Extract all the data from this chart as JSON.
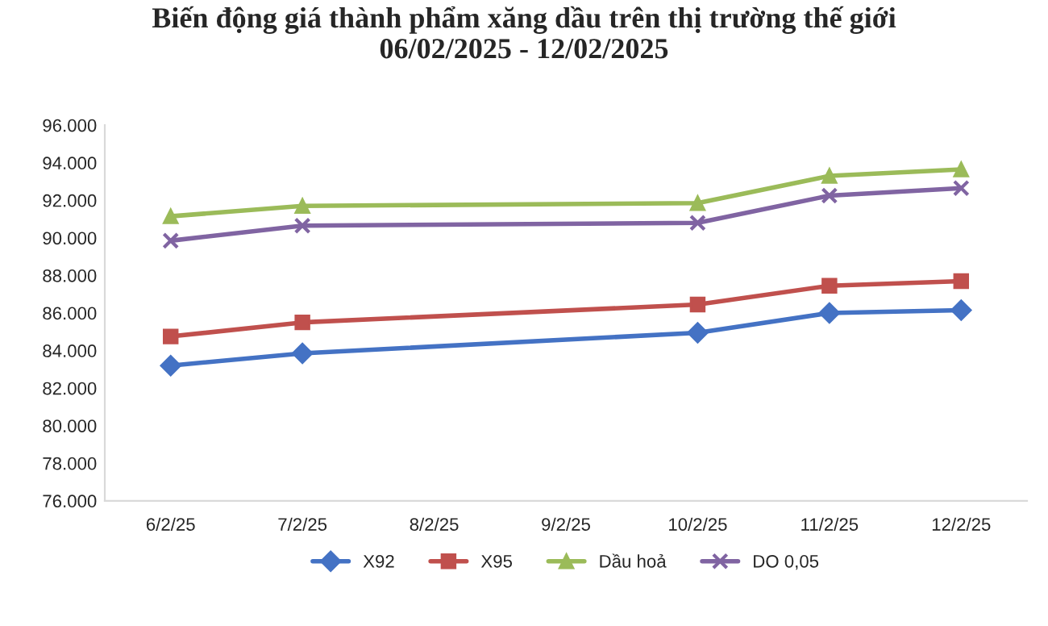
{
  "chart_data": {
    "type": "line",
    "title": "Biến động giá thành phẩm xăng dầu trên thị trường thế giới\n06/02/2025 - 12/02/2025",
    "categories": [
      "6/2/25",
      "7/2/25",
      "8/2/25",
      "9/2/25",
      "10/2/25",
      "11/2/25",
      "12/2/25"
    ],
    "series": [
      {
        "name": "X92",
        "color": "#4472c4",
        "marker": "diamond",
        "values": [
          83200,
          83850,
          null,
          null,
          84950,
          86000,
          86150
        ]
      },
      {
        "name": "X95",
        "color": "#c0504d",
        "marker": "square",
        "values": [
          84750,
          85500,
          null,
          null,
          86450,
          87450,
          87700
        ]
      },
      {
        "name": "Dầu hoả",
        "color": "#9bbb59",
        "marker": "triangle",
        "values": [
          91150,
          91700,
          null,
          null,
          91850,
          93300,
          93650
        ]
      },
      {
        "name": "DO 0,05",
        "color": "#8064a2",
        "marker": "cross",
        "values": [
          89850,
          90650,
          null,
          null,
          90800,
          92250,
          92650
        ]
      }
    ],
    "ylim": [
      76000,
      96000
    ],
    "yticks": [
      {
        "value": 76000,
        "label": "76.000"
      },
      {
        "value": 78000,
        "label": "78.000"
      },
      {
        "value": 80000,
        "label": "80.000"
      },
      {
        "value": 82000,
        "label": "82.000"
      },
      {
        "value": 84000,
        "label": "84.000"
      },
      {
        "value": 86000,
        "label": "86.000"
      },
      {
        "value": 88000,
        "label": "88.000"
      },
      {
        "value": 90000,
        "label": "90.000"
      },
      {
        "value": 92000,
        "label": "92.000"
      },
      {
        "value": 94000,
        "label": "94.000"
      },
      {
        "value": 96000,
        "label": "96.000"
      }
    ],
    "grid": false,
    "legend": "bottom",
    "line_style": "solid"
  }
}
